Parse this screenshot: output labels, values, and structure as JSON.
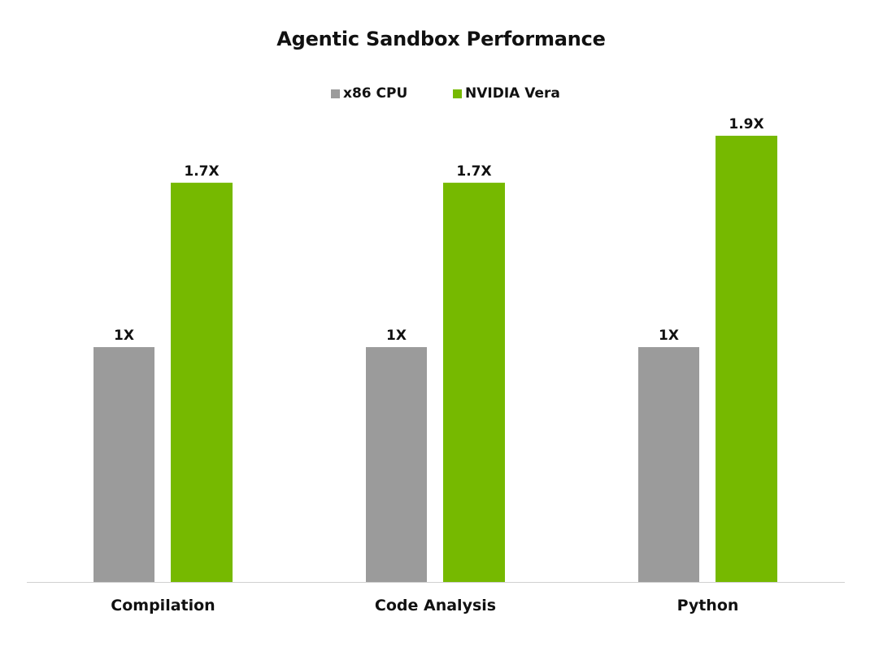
{
  "chart_data": {
    "type": "bar",
    "title": "Agentic Sandbox Performance",
    "categories": [
      "Compilation",
      "Code Analysis",
      "Python"
    ],
    "series": [
      {
        "name": "x86 CPU",
        "color": "#9b9b9b",
        "values": [
          1,
          1,
          1
        ],
        "labels": [
          "1X",
          "1X",
          "1X"
        ]
      },
      {
        "name": "NVIDIA Vera",
        "color": "#76b900",
        "values": [
          1.7,
          1.7,
          1.9
        ],
        "labels": [
          "1.7X",
          "1.7X",
          "1.9X"
        ]
      }
    ],
    "ylim": [
      0,
      1.9
    ],
    "grid": false,
    "legend": "top-center",
    "baseline_color": "#d0d0d0"
  }
}
